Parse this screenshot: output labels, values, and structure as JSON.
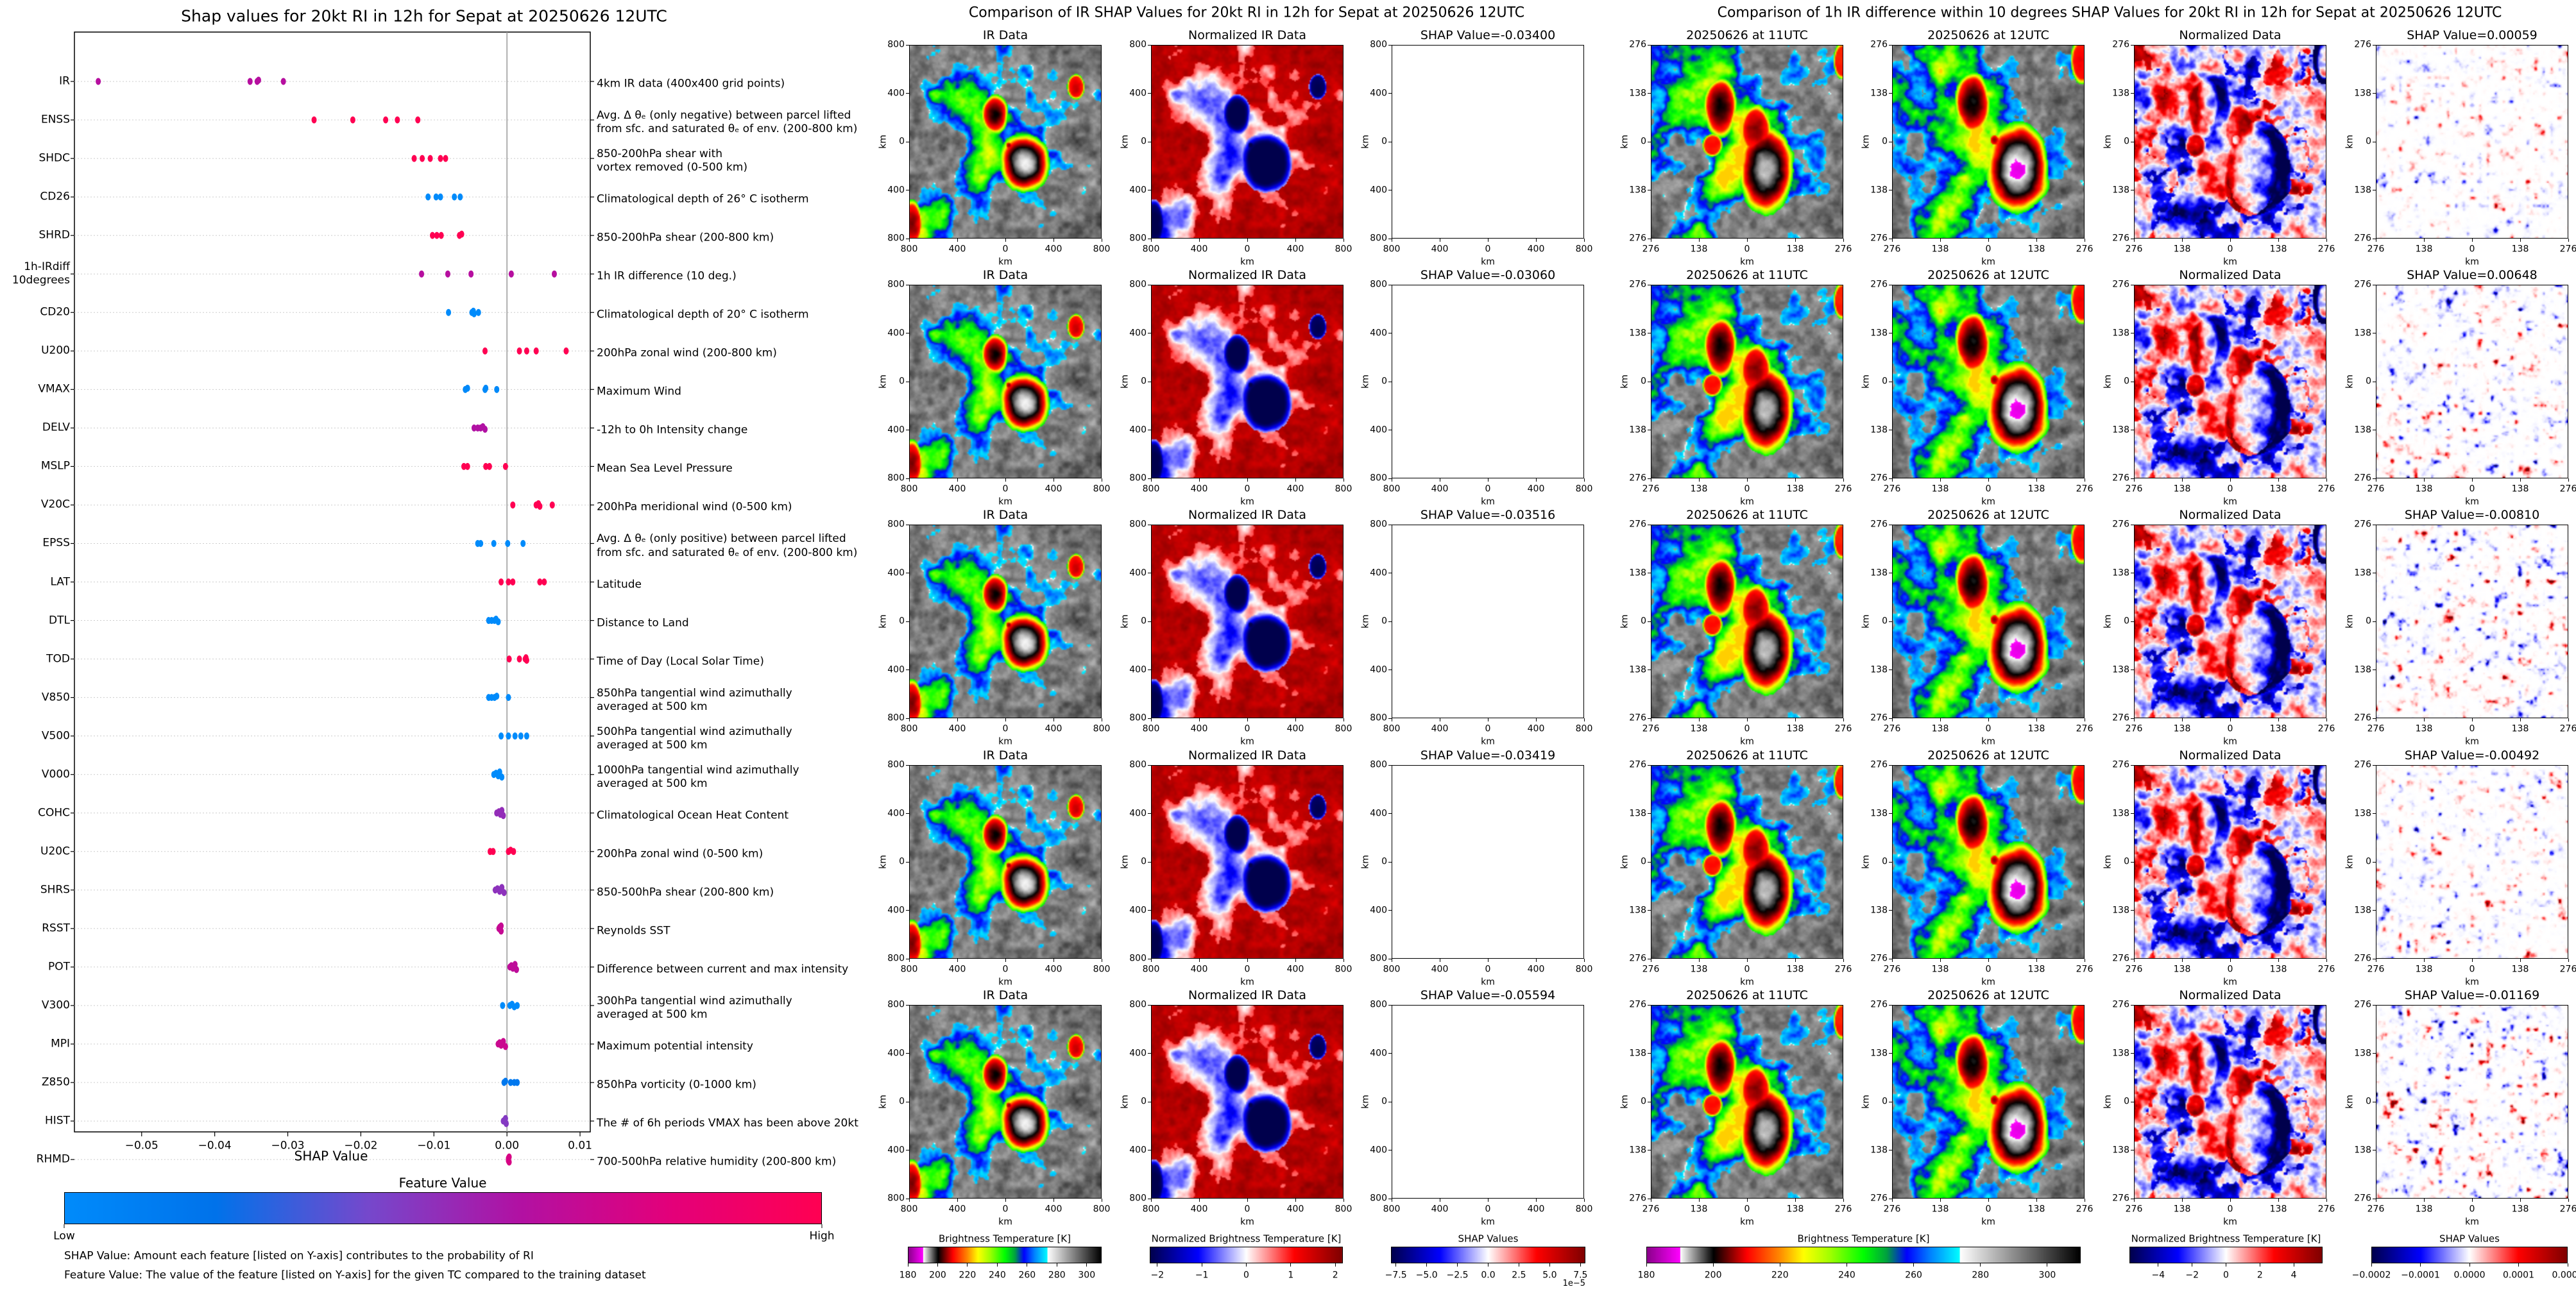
{
  "chart_data": [
    {
      "type": "scatter",
      "title": "Shap values for 20kt RI in 12h for Sepat at 20250626 12UTC",
      "xlabel": "SHAP Value",
      "xlim": [
        -0.0592,
        0.0114
      ],
      "xticks": [
        -0.05,
        -0.04,
        -0.03,
        -0.02,
        -0.01,
        0.0,
        0.01
      ],
      "xtick_labels": [
        "−0.05",
        "−0.04",
        "−0.03",
        "−0.02",
        "−0.01",
        "0.00",
        "0.01"
      ],
      "grid": "dotted horizontal per feature",
      "zero_line_color": "#999999",
      "features": [
        {
          "name": "IR",
          "description": "4km IR data (400x400 grid points)",
          "feature_value": 0.62,
          "shap_values": [
            -0.05594,
            -0.03516,
            -0.03419,
            -0.034,
            -0.0306
          ]
        },
        {
          "name": "ENSS",
          "description": "Avg. Δ θₑ (only negative) between parcel lifted\nfrom sfc. and saturated θₑ of env. (200-800 km)",
          "feature_value": 1.0,
          "shap_values": [
            -0.0264,
            -0.0211,
            -0.0166,
            -0.015,
            -0.0122
          ]
        },
        {
          "name": "SHDC",
          "description": "850-200hPa shear with\nvortex removed (0-500 km)",
          "feature_value": 1.0,
          "shap_values": [
            -0.0127,
            -0.0116,
            -0.0105,
            -0.0091,
            -0.0084
          ]
        },
        {
          "name": "CD26",
          "description": "Climatological depth of 26° C isotherm",
          "feature_value": 0.0,
          "shap_values": [
            -0.0108,
            -0.0097,
            -0.0091,
            -0.0072,
            -0.0064
          ]
        },
        {
          "name": "SHRD",
          "description": "850-200hPa shear (200-800 km)",
          "feature_value": 1.0,
          "shap_values": [
            -0.0102,
            -0.0096,
            -0.009,
            -0.0065,
            -0.0062
          ]
        },
        {
          "name": "1h-IRdiff\n10degrees",
          "description": "1h IR difference (10 deg.)",
          "feature_value": 0.62,
          "shap_values": [
            -0.01169,
            -0.0081,
            -0.00492,
            0.00059,
            0.00648
          ]
        },
        {
          "name": "CD20",
          "description": "Climatological depth of 20° C isotherm",
          "feature_value": 0.0,
          "shap_values": [
            -0.008,
            -0.0048,
            -0.0046,
            -0.0045,
            -0.0039
          ]
        },
        {
          "name": "U200",
          "description": "200hPa zonal wind (200-800 km)",
          "feature_value": 1.0,
          "shap_values": [
            -0.003,
            0.0017,
            0.0027,
            0.004,
            0.0081
          ]
        },
        {
          "name": "VMAX",
          "description": "Maximum Wind",
          "feature_value": 0.02,
          "shap_values": [
            -0.0057,
            -0.0054,
            -0.003,
            -0.0029,
            -0.0014
          ]
        },
        {
          "name": "DELV",
          "description": "-12h to 0h Intensity change",
          "feature_value": 0.6,
          "shap_values": [
            -0.0045,
            -0.004,
            -0.0036,
            -0.0033,
            -0.003
          ]
        },
        {
          "name": "MSLP",
          "description": "Mean Sea Level Pressure",
          "feature_value": 1.0,
          "shap_values": [
            -0.0059,
            -0.0054,
            -0.0029,
            -0.0024,
            -0.0002
          ]
        },
        {
          "name": "V20C",
          "description": "200hPa meridional wind (0-500 km)",
          "feature_value": 1.0,
          "shap_values": [
            0.0008,
            0.004,
            0.0043,
            0.0045,
            0.0062
          ]
        },
        {
          "name": "EPSS",
          "description": "Avg. Δ θₑ (only positive) between parcel lifted\nfrom sfc. and saturated θₑ of env. (200-800 km)",
          "feature_value": 0.0,
          "shap_values": [
            -0.004,
            -0.0036,
            -0.0018,
            0.0001,
            0.0022
          ]
        },
        {
          "name": "LAT",
          "description": "Latitude",
          "feature_value": 1.0,
          "shap_values": [
            -0.0008,
            0.0002,
            0.0008,
            0.0045,
            0.0051
          ]
        },
        {
          "name": "DTL",
          "description": "Distance to Land",
          "feature_value": 0.0,
          "shap_values": [
            -0.0025,
            -0.0021,
            -0.0017,
            -0.0015,
            -0.0012
          ]
        },
        {
          "name": "TOD",
          "description": "Time of Day (Local Solar Time)",
          "feature_value": 1.0,
          "shap_values": [
            0.0003,
            0.0017,
            0.0025,
            0.0026,
            0.0027
          ]
        },
        {
          "name": "V850",
          "description": "850hPa tangential wind azimuthally\naveraged at 500 km",
          "feature_value": 0.0,
          "shap_values": [
            -0.0025,
            -0.0021,
            -0.0017,
            -0.0014,
            0.0002
          ]
        },
        {
          "name": "V500",
          "description": "500hPa tangential wind azimuthally\naveraged at 500 km",
          "feature_value": 0.0,
          "shap_values": [
            -0.0008,
            0.0002,
            0.0011,
            0.0019,
            0.0027
          ]
        },
        {
          "name": "V000",
          "description": "1000hPa tangential wind azimuthally\naveraged at 500 km",
          "feature_value": 0.0,
          "shap_values": [
            -0.0018,
            -0.0015,
            -0.0012,
            -0.001,
            -0.0007
          ]
        },
        {
          "name": "COHC",
          "description": "Climatological Ocean Heat Content",
          "feature_value": 0.5,
          "shap_values": [
            -0.0014,
            -0.0011,
            -0.0009,
            -0.0007,
            -0.0005
          ]
        },
        {
          "name": "U20C",
          "description": "200hPa zonal wind (0-500 km)",
          "feature_value": 1.0,
          "shap_values": [
            -0.0023,
            -0.0019,
            0.0002,
            0.0005,
            0.0009
          ]
        },
        {
          "name": "SHRS",
          "description": "850-500hPa shear (200-800 km)",
          "feature_value": 0.48,
          "shap_values": [
            -0.0016,
            -0.0013,
            -0.001,
            -0.0007,
            -0.0004
          ]
        },
        {
          "name": "RSST",
          "description": "Reynolds SST",
          "feature_value": 0.68,
          "shap_values": [
            -0.0011,
            -0.001,
            -0.0009,
            -0.0008,
            -0.0008
          ]
        },
        {
          "name": "POT",
          "description": "Difference between current and max intensity",
          "feature_value": 0.65,
          "shap_values": [
            0.0004,
            0.0006,
            0.0008,
            0.0011,
            0.0013
          ]
        },
        {
          "name": "V300",
          "description": "300hPa tangential wind azimuthally\naveraged at 500 km",
          "feature_value": 0.0,
          "shap_values": [
            -0.0006,
            0.0004,
            0.0007,
            0.001,
            0.0014
          ]
        },
        {
          "name": "MPI",
          "description": "Maximum potential intensity",
          "feature_value": 0.7,
          "shap_values": [
            -0.0012,
            -0.001,
            -0.0008,
            -0.0005,
            -0.0002
          ]
        },
        {
          "name": "Z850",
          "description": "850hPa vorticity (0-1000 km)",
          "feature_value": 0.15,
          "shap_values": [
            -0.0004,
            -0.0002,
            0.0005,
            0.001,
            0.0014
          ]
        },
        {
          "name": "HIST",
          "description": "The # of 6h periods VMAX has been above 20kt",
          "feature_value": 0.45,
          "shap_values": [
            -0.0005,
            -0.0003,
            -0.0002,
            -0.0002,
            -0.0001
          ]
        },
        {
          "name": "RHMD",
          "description": "700-500hPa relative humidity (200-800 km)",
          "feature_value": 0.75,
          "shap_values": [
            0.0002,
            0.0002,
            0.0002,
            0.0003,
            0.0003
          ]
        }
      ],
      "colorbar": {
        "title": "Feature Value",
        "low_label": "Low",
        "high_label": "High",
        "colors": [
          "#008bfb",
          "#0072ea",
          "#7548cc",
          "#b111a3",
          "#e3007a",
          "#ff0052"
        ]
      },
      "notes": [
        "SHAP Value: Amount each feature [listed on Y-axis] contributes to the probability of RI",
        "Feature Value: The value of the feature [listed on Y-axis] for the given TC compared to the training dataset"
      ]
    },
    {
      "type": "heatmap",
      "title": "Comparison of IR SHAP Values for 20kt RI in 12h for Sepat at 20250626 12UTC",
      "panel_titles": [
        "IR Data",
        "Normalized IR Data"
      ],
      "shap_titles": [
        "SHAP Value=-0.03400",
        "SHAP Value=-0.03060",
        "SHAP Value=-0.03516",
        "SHAP Value=-0.03419",
        "SHAP Value=-0.05594"
      ],
      "axis_label": "km",
      "tick_labels": [
        "800",
        "400",
        "0",
        "400",
        "800"
      ],
      "extent_km": 800,
      "colorbars": [
        {
          "title": "Brightness Temperature [K]",
          "cmap": "brightness-temperature",
          "range": [
            180,
            310
          ],
          "ticks": [
            180,
            200,
            220,
            240,
            260,
            280,
            300
          ],
          "tick_labels": [
            "180",
            "200",
            "220",
            "240",
            "260",
            "280",
            "300"
          ]
        },
        {
          "title": "Normalized Brightness Temperature [K]",
          "cmap": "seismic",
          "range": [
            -2.17,
            2.17
          ],
          "ticks": [
            -2,
            -1,
            0,
            1,
            2
          ],
          "tick_labels": [
            "−2",
            "−1",
            "0",
            "1",
            "2"
          ]
        },
        {
          "title": "SHAP Values",
          "cmap": "seismic",
          "range": [
            -7.9,
            7.9
          ],
          "ticks": [
            -7.5,
            -5,
            -2.5,
            0,
            2.5,
            5,
            7.5
          ],
          "tick_labels": [
            "−7.5",
            "−5.0",
            "−2.5",
            "0.0",
            "2.5",
            "5.0",
            "7.5"
          ],
          "offset_label": "1e−5"
        }
      ]
    },
    {
      "type": "heatmap",
      "title": "Comparison of 1h IR difference within 10 degrees SHAP Values for 20kt RI in 12h for Sepat at 20250626 12UTC",
      "panel_titles": [
        "20250626 at 11UTC",
        "20250626 at 12UTC",
        "Normalized Data"
      ],
      "shap_titles": [
        "SHAP Value=0.00059",
        "SHAP Value=0.00648",
        "SHAP Value=-0.00810",
        "SHAP Value=-0.00492",
        "SHAP Value=-0.01169"
      ],
      "axis_label": "km",
      "tick_labels": [
        "276",
        "138",
        "0",
        "138",
        "276"
      ],
      "extent_km": 276,
      "colorbars": [
        {
          "title": "Brightness Temperature [K]",
          "cmap": "brightness-temperature",
          "range": [
            180,
            310
          ],
          "ticks": [
            180,
            200,
            220,
            240,
            260,
            280,
            300
          ],
          "tick_labels": [
            "180",
            "200",
            "220",
            "240",
            "260",
            "280",
            "300"
          ]
        },
        {
          "title": "Normalized Brightness Temperature [K]",
          "cmap": "seismic",
          "range": [
            -5.7,
            5.7
          ],
          "ticks": [
            -4,
            -2,
            0,
            2,
            4
          ],
          "tick_labels": [
            "−4",
            "−2",
            "0",
            "2",
            "4"
          ]
        },
        {
          "title": "SHAP Values",
          "cmap": "seismic",
          "range": [
            -0.0002,
            0.0002
          ],
          "ticks": [
            -0.0002,
            -0.0001,
            0,
            0.0001,
            0.0002
          ],
          "tick_labels": [
            "−0.0002",
            "−0.0001",
            "0.0000",
            "0.0001",
            "0.0002"
          ]
        }
      ]
    }
  ]
}
